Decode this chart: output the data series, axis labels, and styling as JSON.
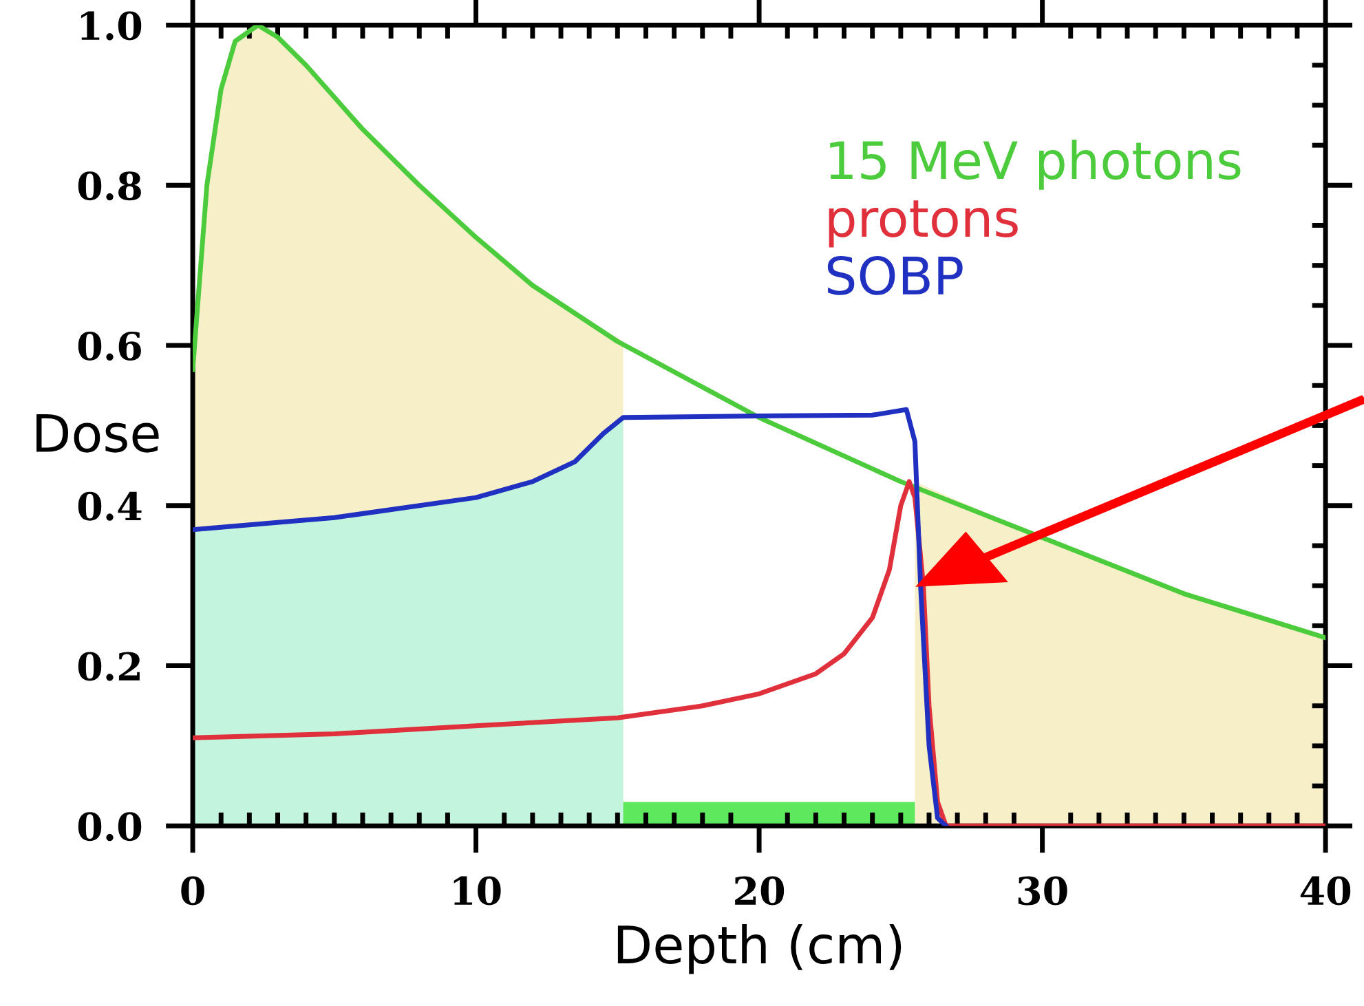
{
  "chart_data": {
    "type": "line",
    "xlabel": "Depth (cm)",
    "ylabel": "Dose",
    "xlim": [
      0,
      40
    ],
    "ylim": [
      0,
      1.0
    ],
    "xticks": [
      0,
      10,
      20,
      30,
      40
    ],
    "yticks": [
      {
        "value": 0,
        "label": "0.0"
      },
      {
        "value": 0.2,
        "label": "0.2"
      },
      {
        "value": 0.4,
        "label": "0.4"
      },
      {
        "value": 0.6,
        "label": "0.6"
      },
      {
        "value": 0.8,
        "label": "0.8"
      },
      {
        "value": 1.0,
        "label": "1.0"
      }
    ],
    "grid": false,
    "legend": "top right",
    "marker": "none",
    "line_style": "solid",
    "series": [
      {
        "type": "area",
        "color": "#f7efc8",
        "x": [
          0,
          0.5,
          1,
          1.5,
          2.3,
          3,
          4,
          5,
          6,
          8,
          10,
          12,
          15.2
        ],
        "values": [
          0.57,
          0.8,
          0.92,
          0.98,
          1.0,
          0.985,
          0.95,
          0.91,
          0.87,
          0.8,
          0.735,
          0.675,
          0.605
        ]
      },
      {
        "type": "area",
        "color": "#f7efc8",
        "x": [
          25.5,
          30,
          35,
          40
        ],
        "values": [
          0.43,
          0.36,
          0.29,
          0.235
        ]
      },
      {
        "type": "area",
        "color": "#c3f5de",
        "x": [
          0,
          5,
          10,
          12,
          13.5,
          14.5,
          15.2
        ],
        "values": [
          0.37,
          0.385,
          0.41,
          0.43,
          0.455,
          0.49,
          0.51
        ]
      },
      {
        "type": "area",
        "color": "#5ee85e",
        "x": [
          15.2,
          25.5
        ],
        "values": [
          0.03,
          0.03
        ]
      },
      {
        "name": "15 MeV photons",
        "color": "#4ccc3c",
        "x": [
          0,
          0.5,
          1,
          1.5,
          2.3,
          3,
          4,
          5,
          6,
          8,
          10,
          12,
          15,
          20,
          25,
          30,
          35,
          40
        ],
        "values": [
          0.57,
          0.8,
          0.92,
          0.98,
          1.0,
          0.985,
          0.95,
          0.91,
          0.87,
          0.8,
          0.735,
          0.675,
          0.605,
          0.51,
          0.43,
          0.36,
          0.29,
          0.235
        ]
      },
      {
        "name": "protons",
        "color": "#e0303c",
        "x": [
          0,
          5,
          10,
          15,
          18,
          20,
          22,
          23,
          24,
          24.6,
          25,
          25.3,
          25.5,
          25.8,
          26,
          26.3,
          26.6,
          40
        ],
        "values": [
          0.11,
          0.115,
          0.125,
          0.135,
          0.15,
          0.165,
          0.19,
          0.215,
          0.26,
          0.32,
          0.4,
          0.43,
          0.41,
          0.3,
          0.15,
          0.03,
          0,
          0
        ]
      },
      {
        "name": "SOBP",
        "color": "#2030c0",
        "x": [
          0,
          5,
          10,
          12,
          13.5,
          14.5,
          15.2,
          20,
          24,
          25.2,
          25.5,
          25.7,
          26,
          26.3,
          26.6
        ],
        "values": [
          0.37,
          0.385,
          0.41,
          0.43,
          0.455,
          0.49,
          0.51,
          0.512,
          0.513,
          0.52,
          0.48,
          0.3,
          0.1,
          0.01,
          0
        ]
      }
    ]
  }
}
